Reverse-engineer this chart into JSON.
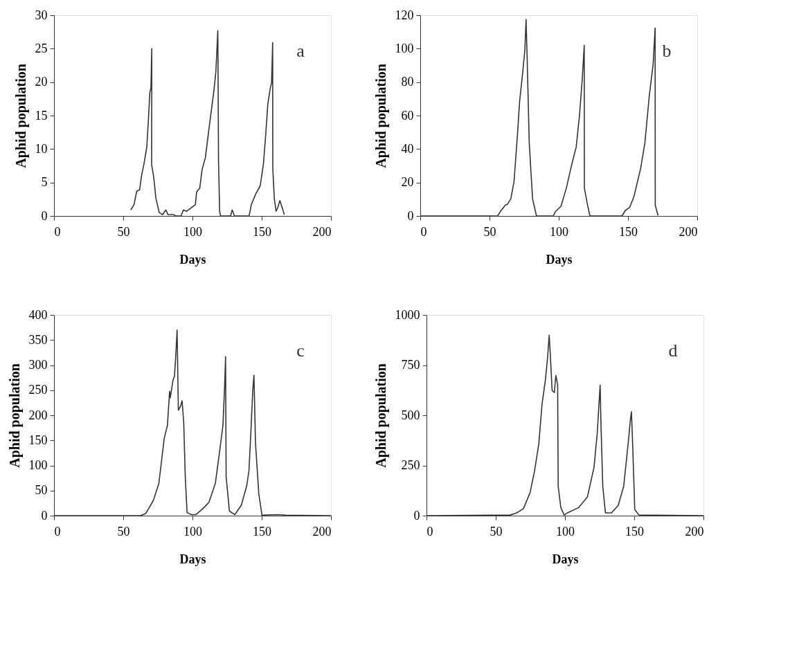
{
  "chart_data": [
    {
      "type": "line",
      "xlabel": "Days",
      "ylabel": "Aphid population",
      "annotations": [
        "a"
      ],
      "xlim": [
        0,
        200
      ],
      "xticks": [
        0,
        50,
        100,
        150,
        200
      ],
      "ylim": [
        0,
        30
      ],
      "yticks": [
        0,
        5,
        10,
        15,
        20,
        25,
        30
      ],
      "grid": false,
      "x": [
        55.4,
        57.8,
        59.7,
        61.8,
        63.3,
        64.9,
        67,
        68.1,
        69.2,
        70,
        70.6,
        70.5,
        72,
        73.6,
        76,
        78.4,
        80.8,
        82.3,
        86.3,
        87.9,
        91.8,
        93.4,
        95.8,
        99,
        102.1,
        103,
        105.3,
        106.9,
        109.3,
        111.6,
        113.2,
        115.6,
        116.9,
        118.3,
        118.8,
        119.6,
        120.3,
        127.5,
        128.7,
        130.3,
        140.9,
        142.5,
        145.7,
        148.9,
        151.2,
        152.8,
        154.4,
        156,
        157.1,
        157.9,
        158,
        159.1,
        160.4,
        161.5,
        163.1,
        164.7,
        166.3
      ],
      "series": [
        {
          "color": "#333333",
          "values": [
            0.9,
            1.7,
            3.7,
            3.9,
            6.1,
            7.7,
            10.3,
            14.1,
            18.4,
            19.2,
            25,
            7.7,
            5.8,
            2.6,
            0.5,
            0.2,
            0.9,
            0.2,
            0.2,
            0,
            0,
            0.9,
            0.7,
            1.2,
            1.7,
            3.6,
            4.2,
            6.9,
            8.7,
            12.5,
            15.1,
            18.9,
            21.6,
            27.7,
            8.4,
            0.7,
            0,
            0,
            0.9,
            0,
            0,
            1.7,
            3.3,
            4.5,
            7.7,
            11.9,
            16.7,
            18.9,
            19.9,
            25.9,
            7.1,
            2.6,
            0.7,
            1.2,
            2.3,
            1.3,
            0.2
          ]
        }
      ]
    },
    {
      "type": "line",
      "xlabel": "Days",
      "ylabel": "Aphid population",
      "annotations": [
        "b"
      ],
      "xlim": [
        0,
        200
      ],
      "xticks": [
        0,
        50,
        100,
        150,
        200
      ],
      "ylim": [
        0,
        120
      ],
      "yticks": [
        0,
        20,
        40,
        60,
        80,
        100,
        120
      ],
      "grid": false,
      "x": [
        0,
        55.9,
        58.3,
        61.4,
        63,
        65.4,
        67.7,
        70.1,
        71.7,
        74,
        75.6,
        76.4,
        77.2,
        78.7,
        81.1,
        83.9,
        96.1,
        97.6,
        101.6,
        105.5,
        109.4,
        112.6,
        115,
        116.9,
        118.4,
        118.5,
        120.5,
        122.5,
        145.7,
        148,
        151.2,
        154.3,
        159.1,
        162.2,
        165.4,
        168.2,
        169.6,
        169.7,
        171.7
      ],
      "series": [
        {
          "color": "#333333",
          "values": [
            0,
            0,
            3.2,
            6.4,
            7.1,
            10.3,
            20.5,
            47.5,
            68,
            86,
            100,
            117.5,
            93.7,
            43.6,
            10.3,
            0,
            0,
            2.6,
            5.8,
            16.7,
            30.8,
            41.1,
            60.3,
            80.9,
            102,
            16.7,
            7.7,
            0,
            0,
            3.2,
            5.1,
            11.6,
            28.2,
            43.6,
            71.9,
            91.1,
            112.3,
            6.4,
            0.3
          ]
        }
      ]
    },
    {
      "type": "line",
      "xlabel": "Days",
      "ylabel": "Aphid population",
      "annotations": [
        "c"
      ],
      "xlim": [
        0,
        200
      ],
      "xticks": [
        0,
        50,
        100,
        150,
        200
      ],
      "ylim": [
        0,
        400
      ],
      "yticks": [
        0,
        50,
        100,
        150,
        200,
        250,
        300,
        350,
        400
      ],
      "grid": false,
      "x": [
        0,
        62.3,
        66.2,
        71.7,
        75.7,
        79.6,
        81.9,
        83.5,
        84,
        85.9,
        87,
        87.9,
        88.9,
        89.8,
        91.4,
        92.5,
        93.7,
        94.8,
        96.1,
        99.2,
        102.4,
        107.1,
        111.8,
        116.5,
        119.6,
        122,
        123.2,
        123.9,
        124.3,
        126.7,
        130.6,
        135.3,
        139.2,
        140.8,
        142.4,
        143.5,
        144.4,
        145.5,
        147.9,
        150.2,
        162,
        167.5,
        200
      ],
      "series": [
        {
          "color": "#333333",
          "values": [
            0,
            0,
            4,
            30,
            64,
            154,
            180,
            248,
            235,
            270,
            278,
            317,
            370,
            210,
            218,
            229,
            184,
            77,
            6,
            2,
            2,
            13,
            26,
            64,
            128,
            180,
            257,
            317,
            77,
            9,
            2,
            21,
            60,
            90,
            180,
            248,
            280,
            145,
            43,
            1,
            2,
            1,
            0
          ]
        }
      ]
    },
    {
      "type": "line",
      "xlabel": "Days",
      "ylabel": "Aphid population",
      "annotations": [
        "d"
      ],
      "xlim": [
        0,
        200
      ],
      "xticks": [
        0,
        50,
        100,
        150,
        200
      ],
      "ylim": [
        0,
        1000
      ],
      "yticks": [
        0,
        250,
        500,
        750,
        1000
      ],
      "grid": false,
      "x": [
        0,
        60.5,
        65.2,
        70,
        74.8,
        78,
        81.1,
        83.5,
        85.9,
        87.5,
        88.6,
        89.4,
        90.7,
        92.3,
        93.4,
        94.7,
        95.1,
        97,
        99.4,
        101.8,
        109.8,
        116.2,
        121,
        123.3,
        124.4,
        125.4,
        126,
        127.3,
        129.2,
        133.6,
        138.4,
        142.4,
        145.6,
        147.2,
        148,
        148.8,
        150.4,
        153.5,
        200
      ],
      "series": [
        {
          "color": "#333333",
          "values": [
            0,
            3,
            14,
            35,
            115,
            221,
            358,
            560,
            677,
            793,
            899,
            804,
            624,
            613,
            698,
            655,
            146,
            40,
            3,
            14,
            40,
            93,
            242,
            411,
            539,
            650,
            454,
            146,
            14,
            14,
            51,
            146,
            358,
            475,
            518,
            369,
            30,
            3,
            0
          ]
        }
      ]
    }
  ]
}
